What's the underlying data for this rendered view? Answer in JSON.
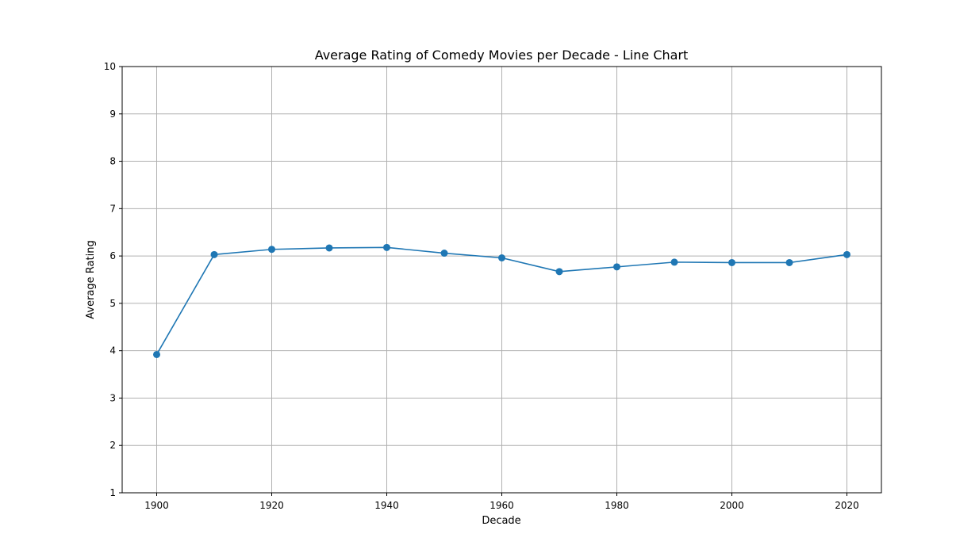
{
  "chart_data": {
    "type": "line",
    "title": "Average Rating of Comedy Movies per Decade - Line Chart",
    "xlabel": "Decade",
    "ylabel": "Average Rating",
    "xlim": [
      1894,
      2026
    ],
    "ylim": [
      1,
      10
    ],
    "xticks": [
      1900,
      1920,
      1940,
      1960,
      1980,
      2000,
      2020
    ],
    "yticks": [
      1,
      2,
      3,
      4,
      5,
      6,
      7,
      8,
      9,
      10
    ],
    "grid": true,
    "series": [
      {
        "x": [
          1900,
          1910,
          1920,
          1930,
          1940,
          1950,
          1960,
          1970,
          1980,
          1990,
          2000,
          2010,
          2020
        ],
        "y": [
          3.92,
          6.03,
          6.14,
          6.17,
          6.18,
          6.06,
          5.96,
          5.67,
          5.77,
          5.87,
          5.86,
          5.86,
          6.03
        ],
        "marker": "circle",
        "color": "#1f77b4"
      }
    ]
  }
}
